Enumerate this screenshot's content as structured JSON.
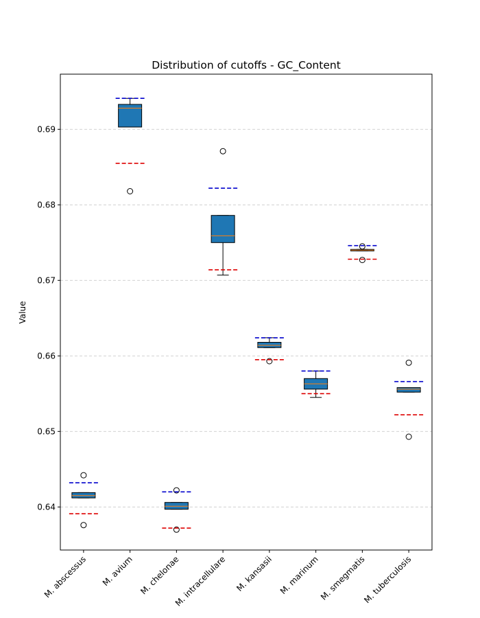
{
  "chart_data": {
    "type": "box",
    "title": "Distribution of cutoffs - GC_Content",
    "xlabel": "",
    "ylabel": "Value",
    "ylim": [
      0.6343,
      0.6973
    ],
    "yticks": [
      "0.64",
      "0.65",
      "0.66",
      "0.67",
      "0.68",
      "0.69"
    ],
    "ytick_values": [
      0.64,
      0.65,
      0.66,
      0.67,
      0.68,
      0.69
    ],
    "grid": "y, dashed",
    "colors": {
      "box_fill": "#1f77b4",
      "median": "#ff7f0e",
      "upper_cutoff_line": "#0000cc",
      "lower_cutoff_line": "#dd0000",
      "grid": "#cccccc"
    },
    "categories": [
      "M. abscessus",
      "M. avium",
      "M. chelonae",
      "M. intracellulare",
      "M. kansasii",
      "M. marinum",
      "M. smegmatis",
      "M. tuberculosis"
    ],
    "boxes": [
      {
        "q1": 0.6412,
        "median": 0.6415,
        "q3": 0.6419,
        "whisker_low": 0.6412,
        "whisker_high": 0.6419,
        "outliers": [
          0.6442,
          0.6376
        ],
        "upper_line": 0.6432,
        "lower_line": 0.6391
      },
      {
        "q1": 0.6903,
        "median": 0.6928,
        "q3": 0.6933,
        "whisker_low": 0.6903,
        "whisker_high": 0.6941,
        "outliers": [
          0.6818
        ],
        "upper_line": 0.6941,
        "lower_line": 0.6855
      },
      {
        "q1": 0.6397,
        "median": 0.6401,
        "q3": 0.6406,
        "whisker_low": 0.6397,
        "whisker_high": 0.6406,
        "outliers": [
          0.6422,
          0.637
        ],
        "upper_line": 0.642,
        "lower_line": 0.6372
      },
      {
        "q1": 0.675,
        "median": 0.6759,
        "q3": 0.6786,
        "whisker_low": 0.6707,
        "whisker_high": 0.6786,
        "outliers": [
          0.6871
        ],
        "upper_line": 0.6822,
        "lower_line": 0.6714
      },
      {
        "q1": 0.6611,
        "median": 0.6614,
        "q3": 0.6618,
        "whisker_low": 0.6611,
        "whisker_high": 0.6624,
        "outliers": [
          0.6593
        ],
        "upper_line": 0.6624,
        "lower_line": 0.6595
      },
      {
        "q1": 0.6556,
        "median": 0.6563,
        "q3": 0.657,
        "whisker_low": 0.6545,
        "whisker_high": 0.658,
        "outliers": [],
        "upper_line": 0.658,
        "lower_line": 0.655
      },
      {
        "q1": 0.6739,
        "median": 0.674,
        "q3": 0.6741,
        "whisker_low": 0.6739,
        "whisker_high": 0.6741,
        "outliers": [
          0.6745,
          0.6727
        ],
        "upper_line": 0.6746,
        "lower_line": 0.6728
      },
      {
        "q1": 0.6552,
        "median": 0.6556,
        "q3": 0.6558,
        "whisker_low": 0.6552,
        "whisker_high": 0.6558,
        "outliers": [
          0.6591,
          0.6493
        ],
        "upper_line": 0.6566,
        "lower_line": 0.6522
      }
    ]
  }
}
